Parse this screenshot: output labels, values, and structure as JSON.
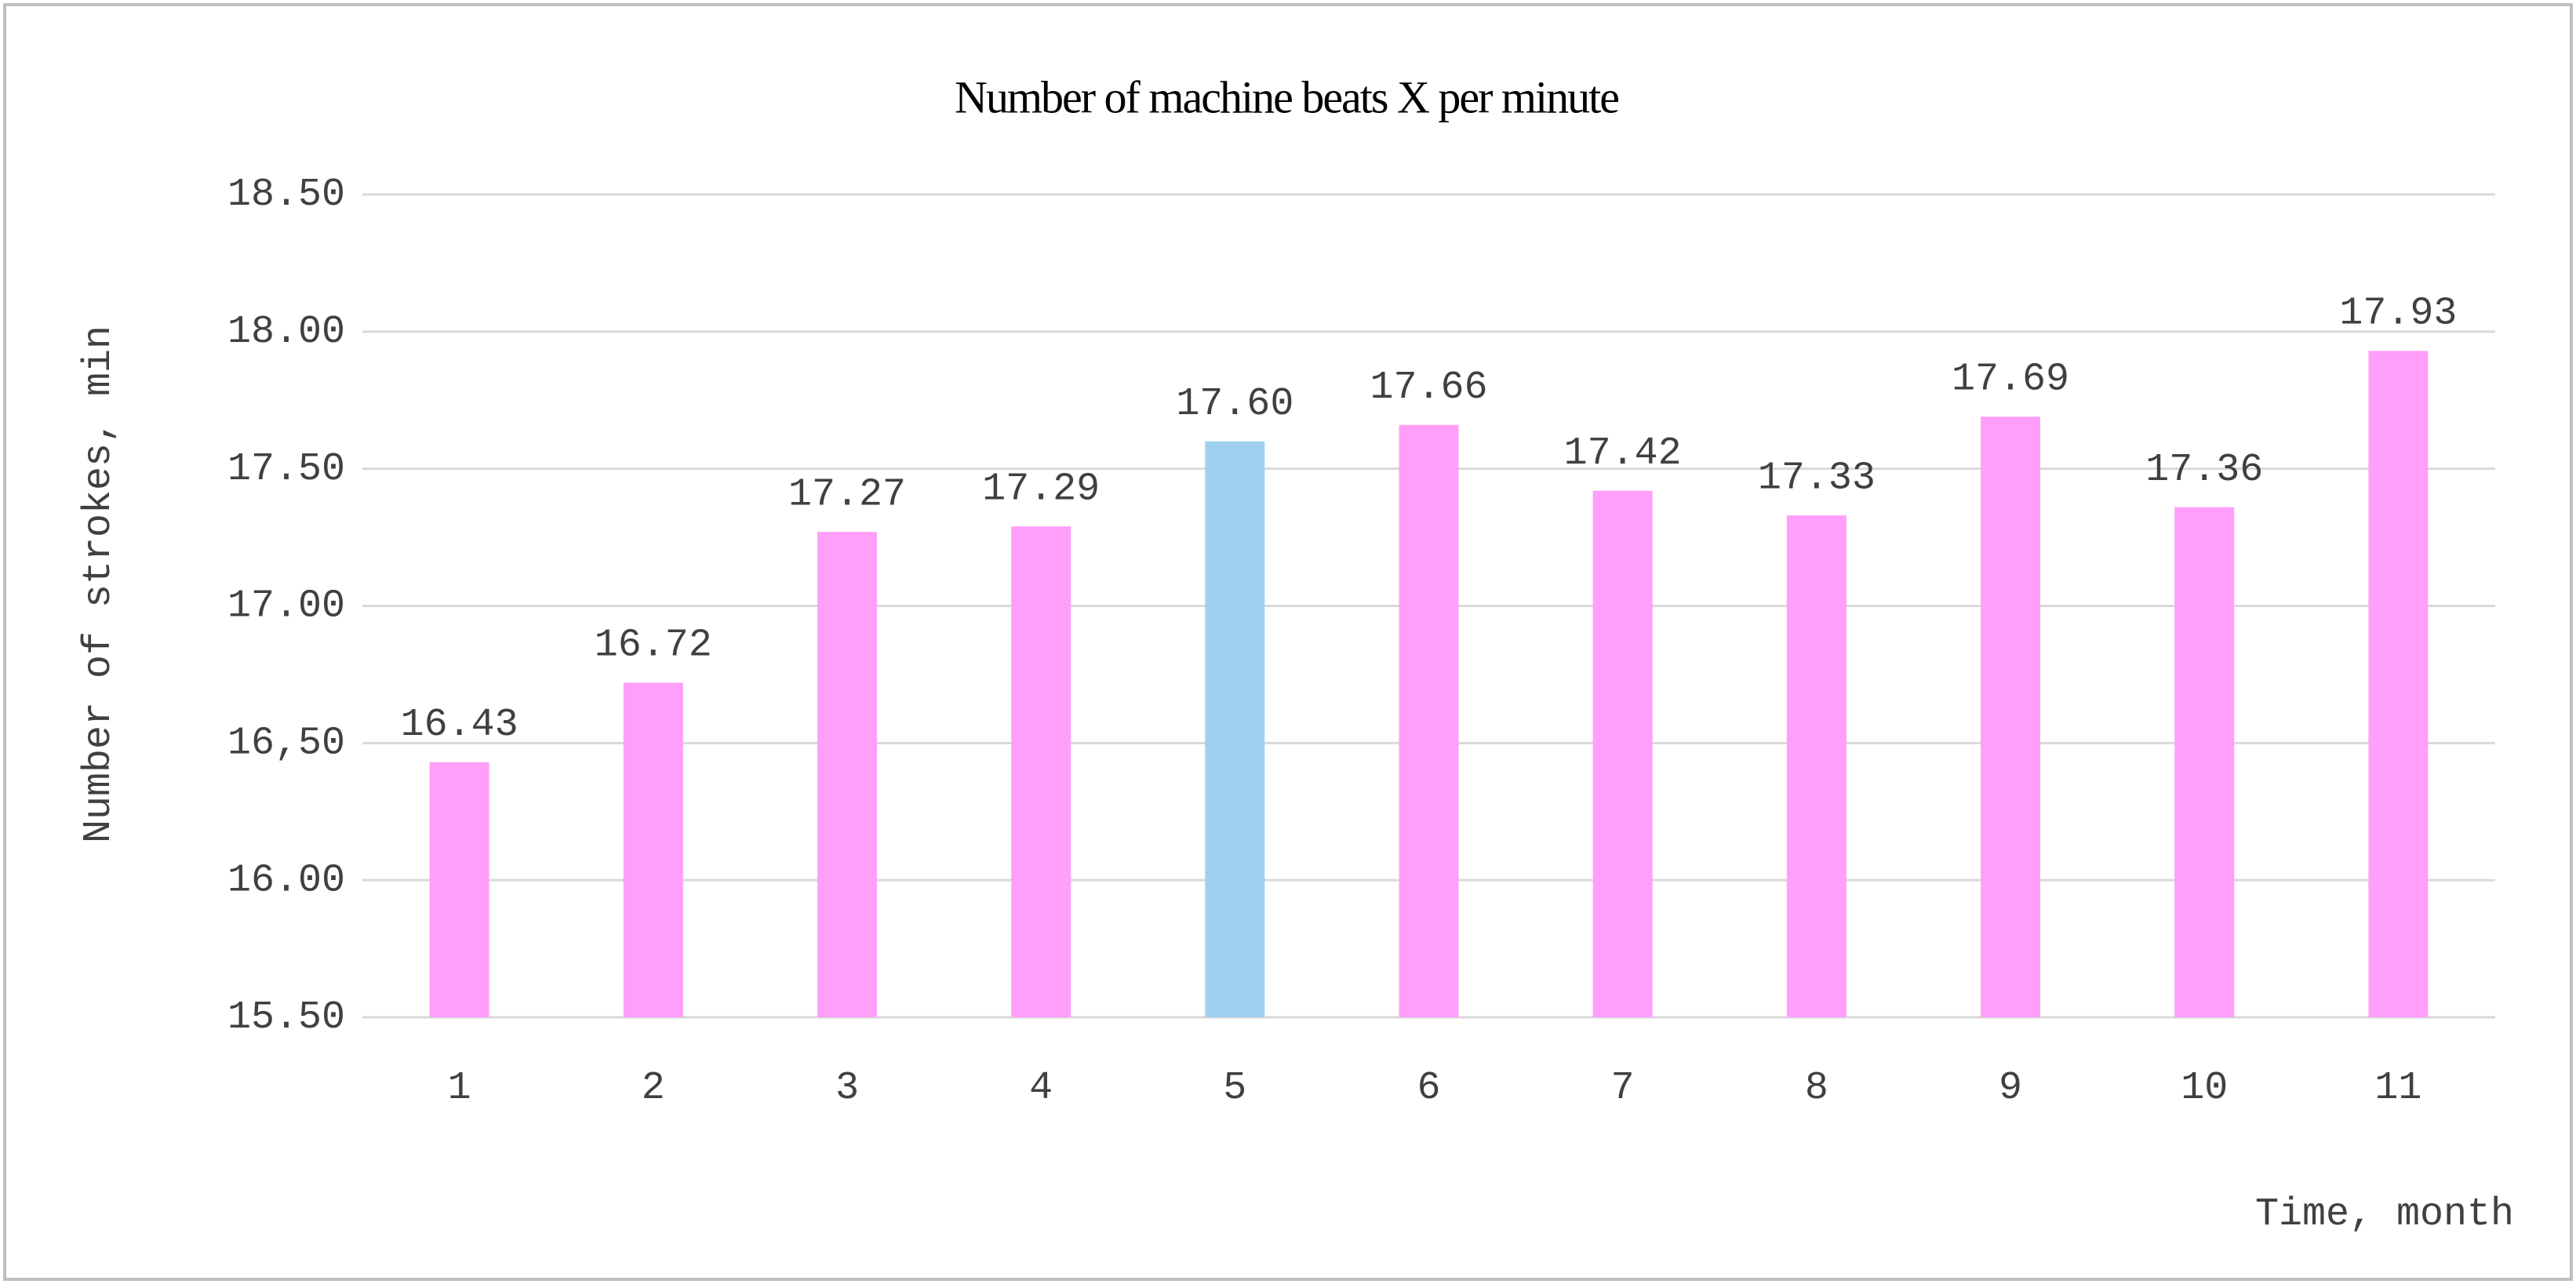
{
  "chart_data": {
    "type": "bar",
    "title": "Number of machine beats X per minute",
    "x_label": "Time, month",
    "y_label": "Number of strokes, min",
    "categories": [
      "1",
      "2",
      "3",
      "4",
      "5",
      "6",
      "7",
      "8",
      "9",
      "10",
      "11"
    ],
    "values": [
      16.43,
      16.72,
      17.27,
      17.29,
      17.6,
      17.66,
      17.42,
      17.33,
      17.69,
      17.36,
      17.93
    ],
    "value_labels": [
      "16.43",
      "16.72",
      "17.27",
      "17.29",
      "17.60",
      "17.66",
      "17.42",
      "17.33",
      "17.69",
      "17.36",
      "17.93"
    ],
    "colors": [
      "#ff9ff9",
      "#ff9ff9",
      "#ff9ff9",
      "#ff9ff9",
      "#9fd0f0",
      "#ff9ff9",
      "#ff9ff9",
      "#ff9ff9",
      "#ff9ff9",
      "#ff9ff9",
      "#ff9ff9"
    ],
    "ylim": [
      15.5,
      18.5
    ],
    "yticks": [
      {
        "value": 15.5,
        "label": "15.50"
      },
      {
        "value": 16,
        "label": "16.00"
      },
      {
        "value": 16.5,
        "label": "16,50"
      },
      {
        "value": 17,
        "label": "17.00"
      },
      {
        "value": 17.5,
        "label": "17.50"
      },
      {
        "value": 18,
        "label": "18.00"
      },
      {
        "value": 18.5,
        "label": "18.50"
      }
    ],
    "grid": true
  }
}
